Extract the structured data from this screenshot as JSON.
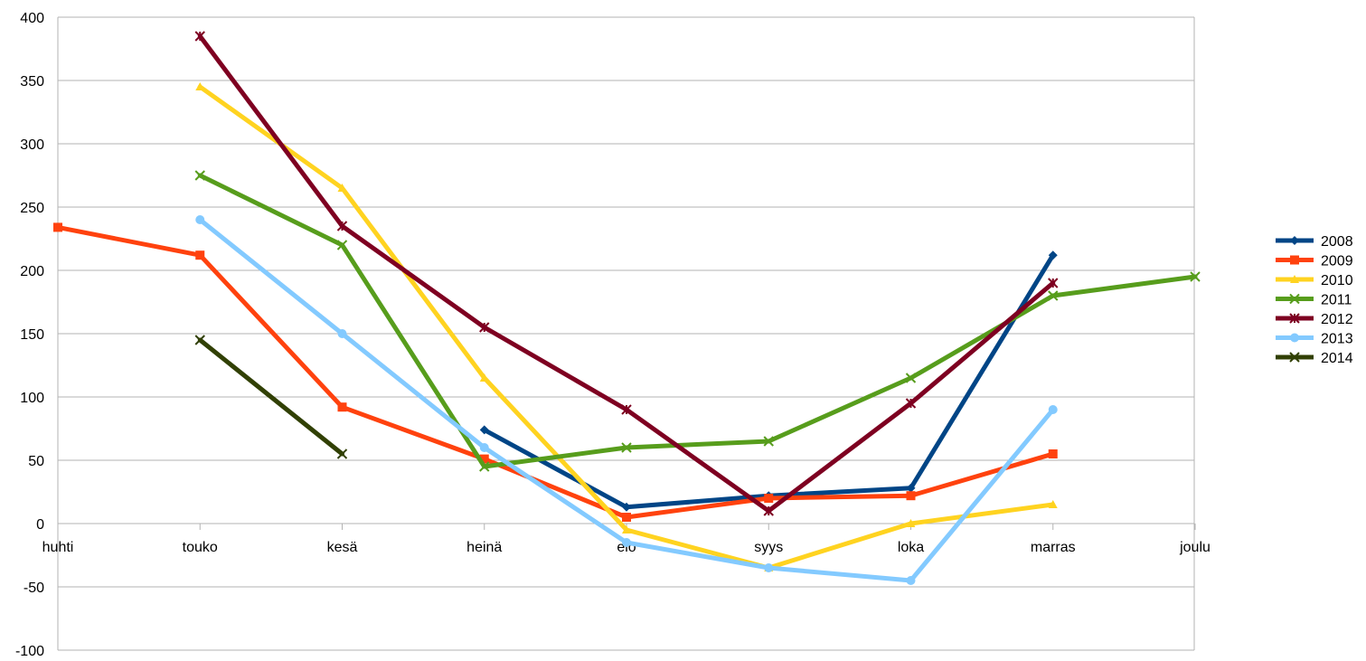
{
  "chart_data": {
    "type": "line",
    "title": "",
    "xlabel": "",
    "ylabel": "",
    "categories": [
      "huhti",
      "touko",
      "kesä",
      "heinä",
      "elo",
      "syys",
      "loka",
      "marras",
      "joulu"
    ],
    "ylim": [
      -100,
      400
    ],
    "yticks": [
      400,
      350,
      300,
      250,
      200,
      150,
      100,
      50,
      0,
      -50,
      -100
    ],
    "grid": "horizontal",
    "legend_position": "right",
    "series": [
      {
        "name": "2008",
        "color": "#004586",
        "marker": "diamond",
        "values": [
          null,
          null,
          null,
          74,
          13,
          22,
          28,
          212,
          null
        ]
      },
      {
        "name": "2009",
        "color": "#ff420e",
        "marker": "square",
        "values": [
          234,
          212,
          92,
          51,
          5,
          20,
          22,
          55,
          null
        ]
      },
      {
        "name": "2010",
        "color": "#ffd320",
        "marker": "triangle",
        "values": [
          null,
          345,
          265,
          115,
          -5,
          -35,
          0,
          15,
          null
        ]
      },
      {
        "name": "2011",
        "color": "#579d1c",
        "marker": "x",
        "values": [
          null,
          275,
          220,
          45,
          60,
          65,
          115,
          180,
          195
        ]
      },
      {
        "name": "2012",
        "color": "#7e0021",
        "marker": "star",
        "values": [
          null,
          385,
          235,
          155,
          90,
          10,
          95,
          190,
          null
        ]
      },
      {
        "name": "2013",
        "color": "#83caff",
        "marker": "circle",
        "values": [
          null,
          240,
          150,
          60,
          -15,
          -35,
          -45,
          90,
          null
        ]
      },
      {
        "name": "2014",
        "color": "#314004",
        "marker": "x",
        "values": [
          null,
          145,
          55,
          null,
          null,
          null,
          null,
          null,
          null
        ]
      }
    ]
  }
}
